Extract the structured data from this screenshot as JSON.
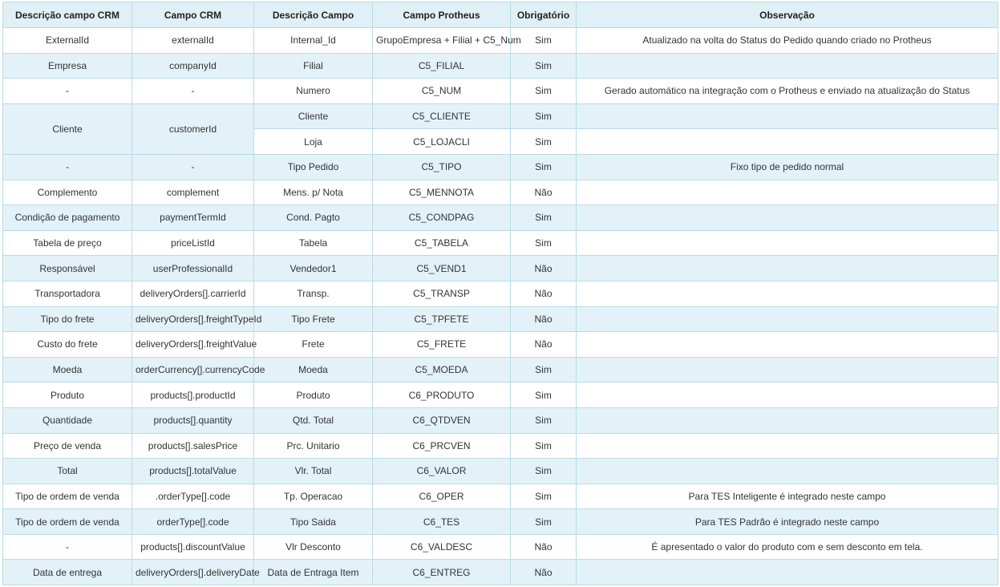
{
  "headers": {
    "crm_desc": "Descrição campo CRM",
    "crm_field": "Campo CRM",
    "field_desc": "Descrição Campo",
    "protheus_field": "Campo Protheus",
    "required": "Obrigatório",
    "notes": "Observação"
  },
  "rows": [
    {
      "crm_desc": "ExternalId",
      "crm_field": "externalId",
      "field_desc": "Internal_Id",
      "protheus_field": "GrupoEmpresa + Filial + C5_Num",
      "required": "Sim",
      "notes": "Atualizado na volta do Status do Pedido quando criado no Protheus"
    },
    {
      "crm_desc": "Empresa",
      "crm_field": "companyId",
      "field_desc": "Filial",
      "protheus_field": "C5_FILIAL",
      "required": "Sim",
      "notes": ""
    },
    {
      "crm_desc": "-",
      "crm_field": "-",
      "field_desc": "Numero",
      "protheus_field": "C5_NUM",
      "required": "Sim",
      "notes": "Gerado automático na integração com o Protheus e enviado na atualização do Status"
    },
    {
      "crm_desc": "Cliente",
      "crm_field": "customerId",
      "field_desc": "Cliente",
      "protheus_field": "C5_CLIENTE",
      "required": "Sim",
      "notes": ""
    },
    {
      "field_desc": "Loja",
      "protheus_field": "C5_LOJACLI",
      "required": "Sim",
      "notes": ""
    },
    {
      "crm_desc": "-",
      "crm_field": "-",
      "field_desc": "Tipo Pedido",
      "protheus_field": "C5_TIPO",
      "required": "Sim",
      "notes": "Fixo tipo de pedido normal"
    },
    {
      "crm_desc": "Complemento",
      "crm_field": "complement",
      "field_desc": "Mens. p/ Nota",
      "protheus_field": "C5_MENNOTA",
      "required": "Não",
      "notes": ""
    },
    {
      "crm_desc": "Condição de pagamento",
      "crm_field": "paymentTermId",
      "field_desc": "Cond. Pagto",
      "protheus_field": "C5_CONDPAG",
      "required": "Sim",
      "notes": ""
    },
    {
      "crm_desc": "Tabela de preço",
      "crm_field": "priceListId",
      "field_desc": "Tabela",
      "protheus_field": "C5_TABELA",
      "required": "Sim",
      "notes": ""
    },
    {
      "crm_desc": "Responsável",
      "crm_field": "userProfessionalId",
      "field_desc": "Vendedor1",
      "protheus_field": "C5_VEND1",
      "required": "Não",
      "notes": ""
    },
    {
      "crm_desc": "Transportadora",
      "crm_field": "deliveryOrders[].carrierId",
      "field_desc": "Transp.",
      "protheus_field": "C5_TRANSP",
      "required": "Não",
      "notes": ""
    },
    {
      "crm_desc": "Tipo do frete",
      "crm_field": "deliveryOrders[].freightTypeId",
      "field_desc": "Tipo Frete",
      "protheus_field": "C5_TPFETE",
      "required": "Não",
      "notes": ""
    },
    {
      "crm_desc": "Custo do frete",
      "crm_field": "deliveryOrders[].freightValue",
      "field_desc": "Frete",
      "protheus_field": "C5_FRETE",
      "required": "Não",
      "notes": ""
    },
    {
      "crm_desc": "Moeda",
      "crm_field": "orderCurrency[].currencyCode",
      "field_desc": "Moeda",
      "protheus_field": "C5_MOEDA",
      "required": "Sim",
      "notes": ""
    },
    {
      "crm_desc": "Produto",
      "crm_field": "products[].productId",
      "field_desc": "Produto",
      "protheus_field": "C6_PRODUTO",
      "required": "Sim",
      "notes": ""
    },
    {
      "crm_desc": "Quantidade",
      "crm_field": "products[].quantity",
      "field_desc": "Qtd. Total",
      "protheus_field": "C6_QTDVEN",
      "required": "Sim",
      "notes": ""
    },
    {
      "crm_desc": "Preço de venda",
      "crm_field": "products[].salesPrice",
      "field_desc": "Prc. Unitario",
      "protheus_field": "C6_PRCVEN",
      "required": "Sim",
      "notes": ""
    },
    {
      "crm_desc": "Total",
      "crm_field": "products[].totalValue",
      "field_desc": "Vlr. Total",
      "protheus_field": "C6_VALOR",
      "required": "Sim",
      "notes": ""
    },
    {
      "crm_desc": "Tipo de ordem de venda",
      "crm_field": ".orderType[].code",
      "field_desc": "Tp. Operacao",
      "protheus_field": "C6_OPER",
      "required": "Sim",
      "notes": "Para TES Inteligente é integrado neste campo"
    },
    {
      "crm_desc": "Tipo de ordem de venda",
      "crm_field": "orderType[].code",
      "field_desc": "Tipo Saida",
      "protheus_field": "C6_TES",
      "required": "Sim",
      "notes": "Para TES Padrão é integrado neste campo"
    },
    {
      "crm_desc": "-",
      "crm_field": "products[].discountValue",
      "field_desc": "Vlr Desconto",
      "protheus_field": "C6_VALDESC",
      "required": "Não",
      "notes": "É apresentado o valor do produto com e sem desconto em tela."
    },
    {
      "crm_desc": "Data de entrega",
      "crm_field": "deliveryOrders[].deliveryDate",
      "field_desc": "Data de Entraga Item",
      "protheus_field": "C6_ENTREG",
      "required": "Não",
      "notes": ""
    }
  ]
}
